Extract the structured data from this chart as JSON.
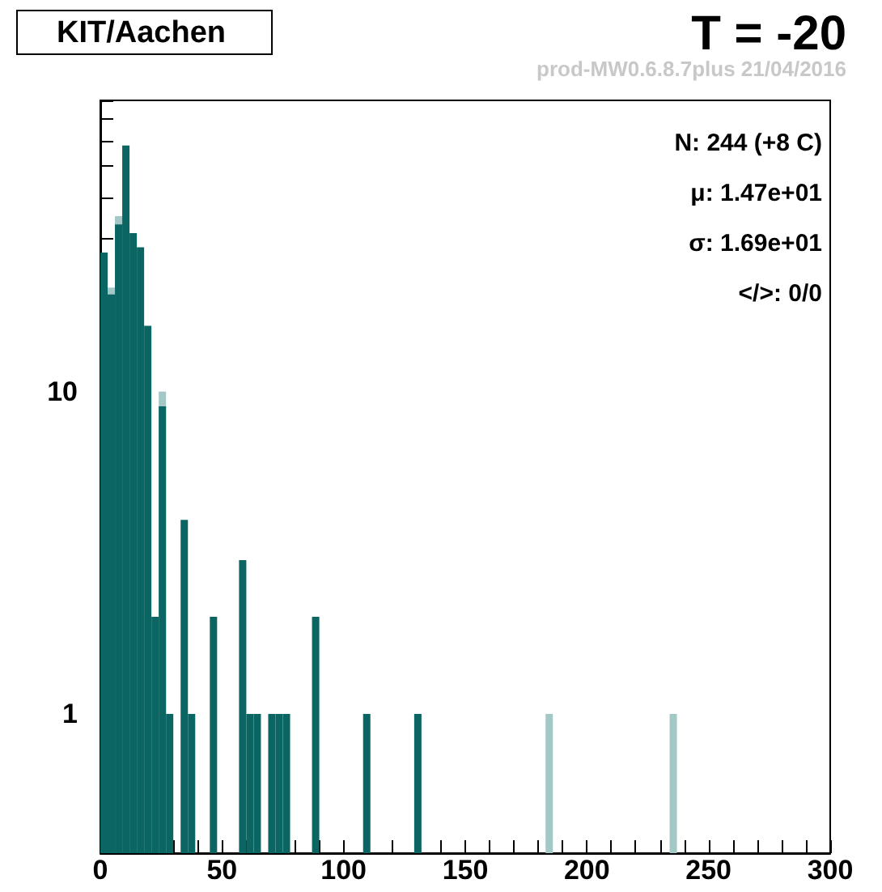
{
  "chart_data": {
    "type": "histogram",
    "title": "T = -20",
    "subtitle": "prod-MW0.6.8.7plus 21/04/2016",
    "annotations": [
      "KIT/Aachen",
      "N: 244 (+8 C)",
      "μ: 1.47e+01",
      "σ: 1.69e+01",
      "</>: 0/0"
    ],
    "bins": [
      0,
      3,
      6,
      9,
      12,
      15,
      18,
      21,
      24,
      27,
      30,
      33,
      36,
      39,
      42,
      45,
      48,
      51,
      54,
      57,
      60,
      63,
      66,
      69,
      72,
      75,
      78,
      81,
      84,
      87,
      90,
      93,
      96,
      99,
      102,
      105,
      108,
      111,
      114,
      117,
      120,
      123,
      126,
      129,
      132,
      135,
      138,
      141,
      144,
      147,
      150,
      153,
      156,
      159,
      162,
      165,
      168,
      171,
      174,
      177,
      180,
      183,
      186,
      189,
      192,
      195,
      198,
      201,
      204,
      207,
      210,
      213,
      216,
      219,
      222,
      225,
      228,
      231,
      234,
      237,
      240,
      243,
      246,
      249,
      252,
      255,
      258,
      261,
      264,
      267,
      270,
      273,
      276,
      279,
      282,
      285,
      288,
      291,
      294,
      297,
      300
    ],
    "series": [
      {
        "color": "#a3c8c6",
        "values": [
          null,
          21,
          35,
          null,
          null,
          null,
          null,
          null,
          10,
          null,
          null,
          null,
          null,
          null,
          null,
          null,
          null,
          null,
          null,
          null,
          null,
          null,
          null,
          null,
          null,
          null,
          null,
          null,
          null,
          null,
          null,
          null,
          null,
          null,
          null,
          null,
          null,
          null,
          null,
          null,
          null,
          null,
          null,
          null,
          null,
          null,
          null,
          null,
          null,
          null,
          null,
          null,
          null,
          null,
          null,
          null,
          null,
          null,
          null,
          null,
          null,
          1,
          null,
          null,
          null,
          null,
          null,
          null,
          null,
          null,
          null,
          null,
          null,
          null,
          null,
          null,
          null,
          null,
          1,
          null,
          null,
          null,
          null,
          null,
          null,
          null,
          null,
          null,
          null,
          null,
          null,
          null,
          null,
          null,
          null,
          null,
          null,
          null,
          null,
          null
        ]
      },
      {
        "color": "#0b6663",
        "values": [
          27,
          20,
          33,
          58,
          31,
          28,
          16,
          2,
          9,
          1,
          null,
          4,
          1,
          null,
          null,
          2,
          null,
          null,
          null,
          3,
          1,
          1,
          null,
          1,
          1,
          1,
          null,
          null,
          null,
          2,
          null,
          null,
          null,
          null,
          null,
          null,
          1,
          null,
          null,
          null,
          null,
          null,
          null,
          1,
          null,
          null,
          null,
          null,
          null,
          null,
          null,
          null,
          null,
          null,
          null,
          null,
          null,
          null,
          null,
          null,
          null,
          null,
          null,
          null,
          null,
          null,
          null,
          null,
          null,
          null,
          null,
          null,
          null,
          null,
          null,
          null,
          null,
          null,
          null,
          null,
          null,
          null,
          null,
          null,
          null,
          null,
          null,
          null,
          null,
          null,
          null,
          null,
          null,
          null,
          null,
          null,
          null,
          null,
          null,
          null
        ]
      }
    ],
    "xlim": [
      0,
      300
    ],
    "xticks": [
      0,
      {
        "value": 10,
        "label": null
      },
      {
        "value": 20,
        "label": null
      },
      {
        "value": 30,
        "label": null
      },
      {
        "value": 40,
        "label": null
      },
      50,
      {
        "value": 60,
        "label": null
      },
      {
        "value": 70,
        "label": null
      },
      {
        "value": 80,
        "label": null
      },
      {
        "value": 90,
        "label": null
      },
      100,
      {
        "value": 110,
        "label": null
      },
      {
        "value": 120,
        "label": null
      },
      {
        "value": 130,
        "label": null
      },
      {
        "value": 140,
        "label": null
      },
      150,
      {
        "value": 160,
        "label": null
      },
      {
        "value": 170,
        "label": null
      },
      {
        "value": 180,
        "label": null
      },
      {
        "value": 190,
        "label": null
      },
      200,
      {
        "value": 210,
        "label": null
      },
      {
        "value": 220,
        "label": null
      },
      {
        "value": 230,
        "label": null
      },
      {
        "value": 240,
        "label": null
      },
      250,
      {
        "value": 260,
        "label": null
      },
      {
        "value": 270,
        "label": null
      },
      {
        "value": 280,
        "label": null
      },
      {
        "value": 290,
        "label": null
      },
      300
    ],
    "ylim": [
      0.37,
      80
    ],
    "yticks": [
      {
        "value": 0.4,
        "label": null
      },
      {
        "value": 0.5,
        "label": null
      },
      {
        "value": 0.6,
        "label": null
      },
      {
        "value": 0.7,
        "label": null
      },
      {
        "value": 0.8,
        "label": null
      },
      {
        "value": 0.9,
        "label": null
      },
      1,
      {
        "value": 2,
        "label": null
      },
      {
        "value": 3,
        "label": null
      },
      {
        "value": 4,
        "label": null
      },
      {
        "value": 5,
        "label": null
      },
      {
        "value": 6,
        "label": null
      },
      {
        "value": 7,
        "label": null
      },
      {
        "value": 8,
        "label": null
      },
      {
        "value": 9,
        "label": null
      },
      10,
      {
        "value": 20,
        "label": null
      },
      {
        "value": 30,
        "label": null
      },
      {
        "value": 40,
        "label": null
      },
      {
        "value": 50,
        "label": null
      },
      {
        "value": 60,
        "label": null
      },
      {
        "value": 70,
        "label": null
      },
      {
        "value": 80,
        "label": null
      }
    ],
    "log": true
  }
}
